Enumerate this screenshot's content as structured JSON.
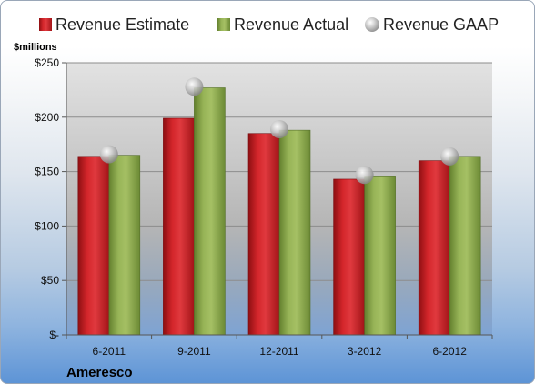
{
  "chart_data": {
    "type": "bar",
    "ylabel": "$millions",
    "company": "Ameresco",
    "categories": [
      "6-2011",
      "9-2011",
      "12-2011",
      "3-2012",
      "6-2012"
    ],
    "series": [
      {
        "name": "Revenue Estimate",
        "kind": "bar",
        "color": "#c0181c",
        "values": [
          164,
          199,
          185,
          143,
          160
        ]
      },
      {
        "name": "Revenue Actual",
        "kind": "bar",
        "color": "#8aa84a",
        "values": [
          165,
          227,
          188,
          146,
          164
        ]
      },
      {
        "name": "Revenue GAAP",
        "kind": "marker",
        "color": "#b8b8b8",
        "values": [
          166,
          228,
          189,
          147,
          164
        ]
      }
    ],
    "ylim": [
      0,
      250
    ],
    "yticks": [
      0,
      50,
      100,
      150,
      200,
      250
    ],
    "ytick_labels": [
      "$-",
      "$50",
      "$100",
      "$150",
      "$200",
      "$250"
    ],
    "grid": true,
    "legend_position": "top"
  }
}
